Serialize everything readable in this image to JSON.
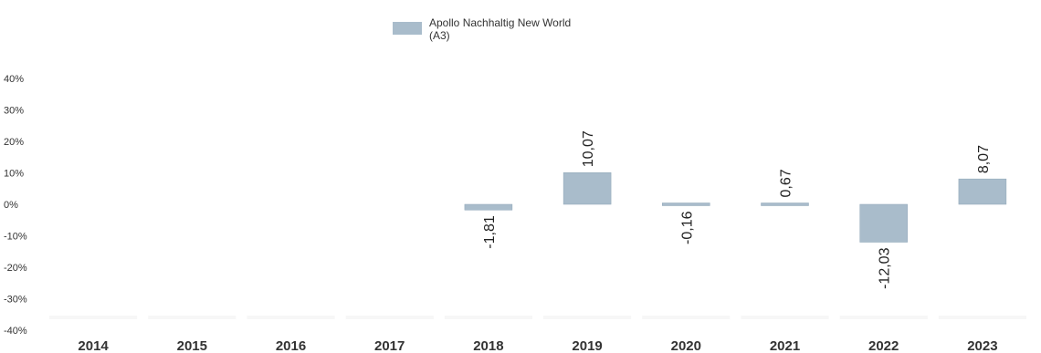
{
  "chart_data": {
    "type": "bar",
    "categories": [
      "2014",
      "2015",
      "2016",
      "2017",
      "2018",
      "2019",
      "2020",
      "2021",
      "2022",
      "2023"
    ],
    "series": [
      {
        "name": "Apollo Nachhaltig New World (A3)",
        "values": [
          null,
          null,
          null,
          null,
          -1.81,
          10.07,
          -0.16,
          0.67,
          -12.03,
          8.07
        ],
        "labels": [
          "",
          "",
          "",
          "",
          "-1,81",
          "10,07",
          "-0,16",
          "0,67",
          "-12,03",
          "8,07"
        ]
      }
    ],
    "y_ticks": [
      "40%",
      "30%",
      "20%",
      "10%",
      "0%",
      "-10%",
      "-20%",
      "-30%",
      "-40%"
    ],
    "ylim": [
      -40,
      40
    ],
    "legend": {
      "line1": "Apollo Nachhaltig New World",
      "line2": "(A3)",
      "position": "top-center"
    },
    "colors": {
      "bar": "#a9bccb",
      "bar_edge": "#8fa6b8",
      "label": "#222222",
      "tick": "#333333",
      "band": "#f7f7f7"
    }
  }
}
